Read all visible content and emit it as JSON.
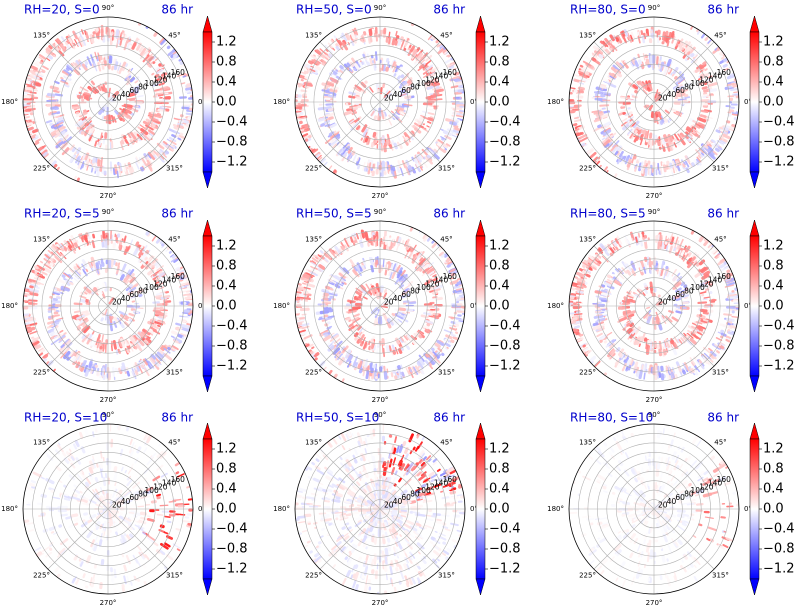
{
  "chart_data": {
    "type": "heatmap",
    "projection": "polar",
    "colormap": "bwr",
    "colormap_colors": {
      "low": "#0000ff",
      "mid": "#ffffff",
      "high": "#ff0000"
    },
    "angle_tick_labels": [
      "0°",
      "45°",
      "90°",
      "135°",
      "180°",
      "225°",
      "270°",
      "315°"
    ],
    "radial_tick_labels": [
      "20",
      "40",
      "60",
      "80",
      "100",
      "120",
      "140",
      "160"
    ],
    "radial_ticks": [
      20,
      40,
      60,
      80,
      100,
      120,
      140,
      160
    ],
    "rlim": [
      0,
      180
    ],
    "grid": true,
    "colorbar": {
      "tick_labels": [
        "1.2",
        "0.8",
        "0.4",
        "0.0",
        "−0.4",
        "−0.8",
        "−1.2"
      ],
      "ticks": [
        1.2,
        0.8,
        0.4,
        0.0,
        -0.4,
        -0.8,
        -1.2
      ],
      "range": [
        -1.4,
        1.4
      ],
      "extend": "both"
    },
    "panels": [
      {
        "title": "RH=20, S=0",
        "time_label": "86 hr",
        "RH": 20,
        "S": 0,
        "pattern": "ring"
      },
      {
        "title": "RH=50, S=0",
        "time_label": "86 hr",
        "RH": 50,
        "S": 0,
        "pattern": "spiral"
      },
      {
        "title": "RH=80, S=0",
        "time_label": "86 hr",
        "RH": 80,
        "S": 0,
        "pattern": "core"
      },
      {
        "title": "RH=20, S=5",
        "time_label": "86 hr",
        "RH": 20,
        "S": 5,
        "pattern": "scatter"
      },
      {
        "title": "RH=50, S=5",
        "time_label": "86 hr",
        "RH": 50,
        "S": 5,
        "pattern": "spiral"
      },
      {
        "title": "RH=80, S=5",
        "time_label": "86 hr",
        "RH": 80,
        "S": 5,
        "pattern": "spiral"
      },
      {
        "title": "RH=20, S=10",
        "time_label": "86 hr",
        "RH": 20,
        "S": 10,
        "pattern": "east"
      },
      {
        "title": "RH=50, S=10",
        "time_label": "86 hr",
        "RH": 50,
        "S": 10,
        "pattern": "northeast"
      },
      {
        "title": "RH=80, S=10",
        "time_label": "86 hr",
        "RH": 80,
        "S": 10,
        "pattern": "weak-east"
      }
    ]
  }
}
